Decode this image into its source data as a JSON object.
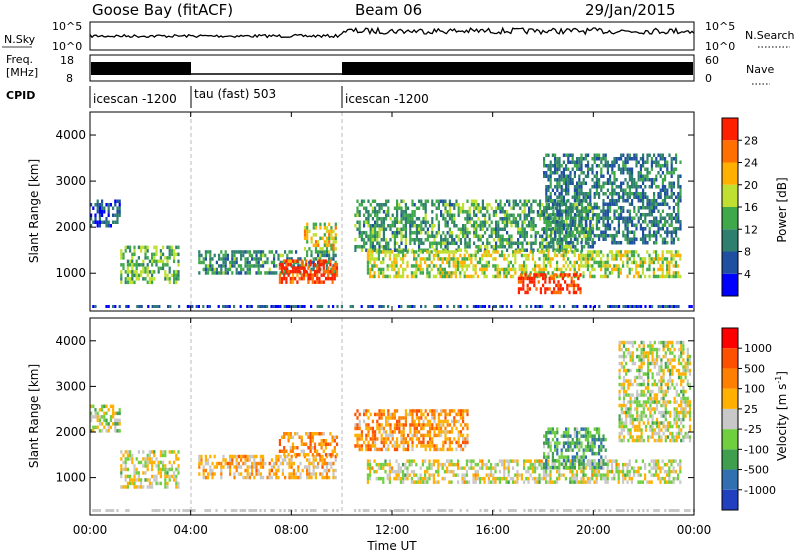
{
  "header": {
    "station": "Goose Bay (fitACF)",
    "beam": "Beam 06",
    "date": "29/Jan/2015"
  },
  "top_panels": {
    "nsky_label": "N.Sky",
    "nsky_ticks": [
      "10^5",
      "10^0"
    ],
    "nsearch_label": "N.Search",
    "freq_label_1": "Freq.",
    "freq_label_2": "[MHz]",
    "freq_ticks": [
      "18",
      "8"
    ],
    "nave_ticks": [
      "60",
      "0"
    ],
    "nave_label": "Nave",
    "cpid_label": "CPID",
    "cpid_segments": [
      {
        "label": "icescan -1200",
        "start_hour": 0
      },
      {
        "label": "tau (fast) 503",
        "start_hour": 4
      },
      {
        "label": "icescan -1200",
        "start_hour": 10
      }
    ]
  },
  "x_axis": {
    "label": "Time UT",
    "ticks": [
      "00:00",
      "04:00",
      "08:00",
      "12:00",
      "16:00",
      "20:00",
      "00:00"
    ],
    "range_hours": [
      0,
      24
    ]
  },
  "chart_data": [
    {
      "type": "heatmap",
      "ylabel": "Slant Range [km]",
      "yticks": [
        1000,
        2000,
        3000,
        4000
      ],
      "ylim": [
        180,
        4500
      ],
      "xlim_hours": [
        0,
        24
      ],
      "colorbar_label": "Power [dB]",
      "colorbar_ticks": [
        "4",
        "8",
        "12",
        "16",
        "20",
        "24",
        "28"
      ],
      "colors": [
        "#0000ff",
        "#1f4fa0",
        "#2f7f6f",
        "#3fa84a",
        "#bfe030",
        "#ffb000",
        "#ff7000",
        "#ff2000"
      ],
      "regions": [
        {
          "t0": 0.0,
          "t1": 1.2,
          "r0": 2000,
          "r1": 2600,
          "v": 0.2
        },
        {
          "t0": 1.2,
          "t1": 3.5,
          "r0": 800,
          "r1": 1600,
          "v": 0.45
        },
        {
          "t0": 4.3,
          "t1": 9.8,
          "r0": 1000,
          "r1": 1500,
          "v": 0.35
        },
        {
          "t0": 7.5,
          "t1": 9.8,
          "r0": 800,
          "r1": 1300,
          "v": 0.9
        },
        {
          "t0": 8.5,
          "t1": 9.8,
          "r0": 1500,
          "r1": 2100,
          "v": 0.6
        },
        {
          "t0": 10.5,
          "t1": 20.0,
          "r0": 1500,
          "r1": 2600,
          "v": 0.4
        },
        {
          "t0": 11.0,
          "t1": 23.5,
          "r0": 900,
          "r1": 1500,
          "v": 0.55
        },
        {
          "t0": 17.0,
          "t1": 19.5,
          "r0": 600,
          "r1": 1000,
          "v": 0.95
        },
        {
          "t0": 18.0,
          "t1": 23.5,
          "r0": 1700,
          "r1": 3600,
          "v": 0.3
        }
      ]
    },
    {
      "type": "heatmap",
      "ylabel": "Slant Range [km]",
      "yticks": [
        1000,
        2000,
        3000,
        4000
      ],
      "ylim": [
        180,
        4500
      ],
      "xlim_hours": [
        0,
        24
      ],
      "colorbar_label": "Velocity [m s^-1]",
      "colorbar_ticks": [
        "1000",
        "500",
        "100",
        "25",
        "-25",
        "-100",
        "-500",
        "-1000"
      ],
      "colors": [
        "#2040c0",
        "#3070b0",
        "#3f9f4f",
        "#6fcf3f",
        "#c8c8c8",
        "#ffb000",
        "#ff8000",
        "#ff5000",
        "#ff0000"
      ],
      "regions": [
        {
          "t0": 0.0,
          "t1": 1.2,
          "r0": 2000,
          "r1": 2600,
          "v": 0.48
        },
        {
          "t0": 1.2,
          "t1": 3.5,
          "r0": 800,
          "r1": 1600,
          "v": 0.5
        },
        {
          "t0": 4.3,
          "t1": 9.8,
          "r0": 1000,
          "r1": 1500,
          "v": 0.62
        },
        {
          "t0": 7.5,
          "t1": 9.8,
          "r0": 1500,
          "r1": 2000,
          "v": 0.7
        },
        {
          "t0": 10.5,
          "t1": 15.0,
          "r0": 1600,
          "r1": 2500,
          "v": 0.68
        },
        {
          "t0": 11.0,
          "t1": 23.5,
          "r0": 900,
          "r1": 1400,
          "v": 0.5
        },
        {
          "t0": 18.0,
          "t1": 20.5,
          "r0": 1200,
          "r1": 2100,
          "v": 0.3
        },
        {
          "t0": 21.0,
          "t1": 23.8,
          "r0": 1800,
          "r1": 4000,
          "v": 0.48
        }
      ]
    }
  ]
}
